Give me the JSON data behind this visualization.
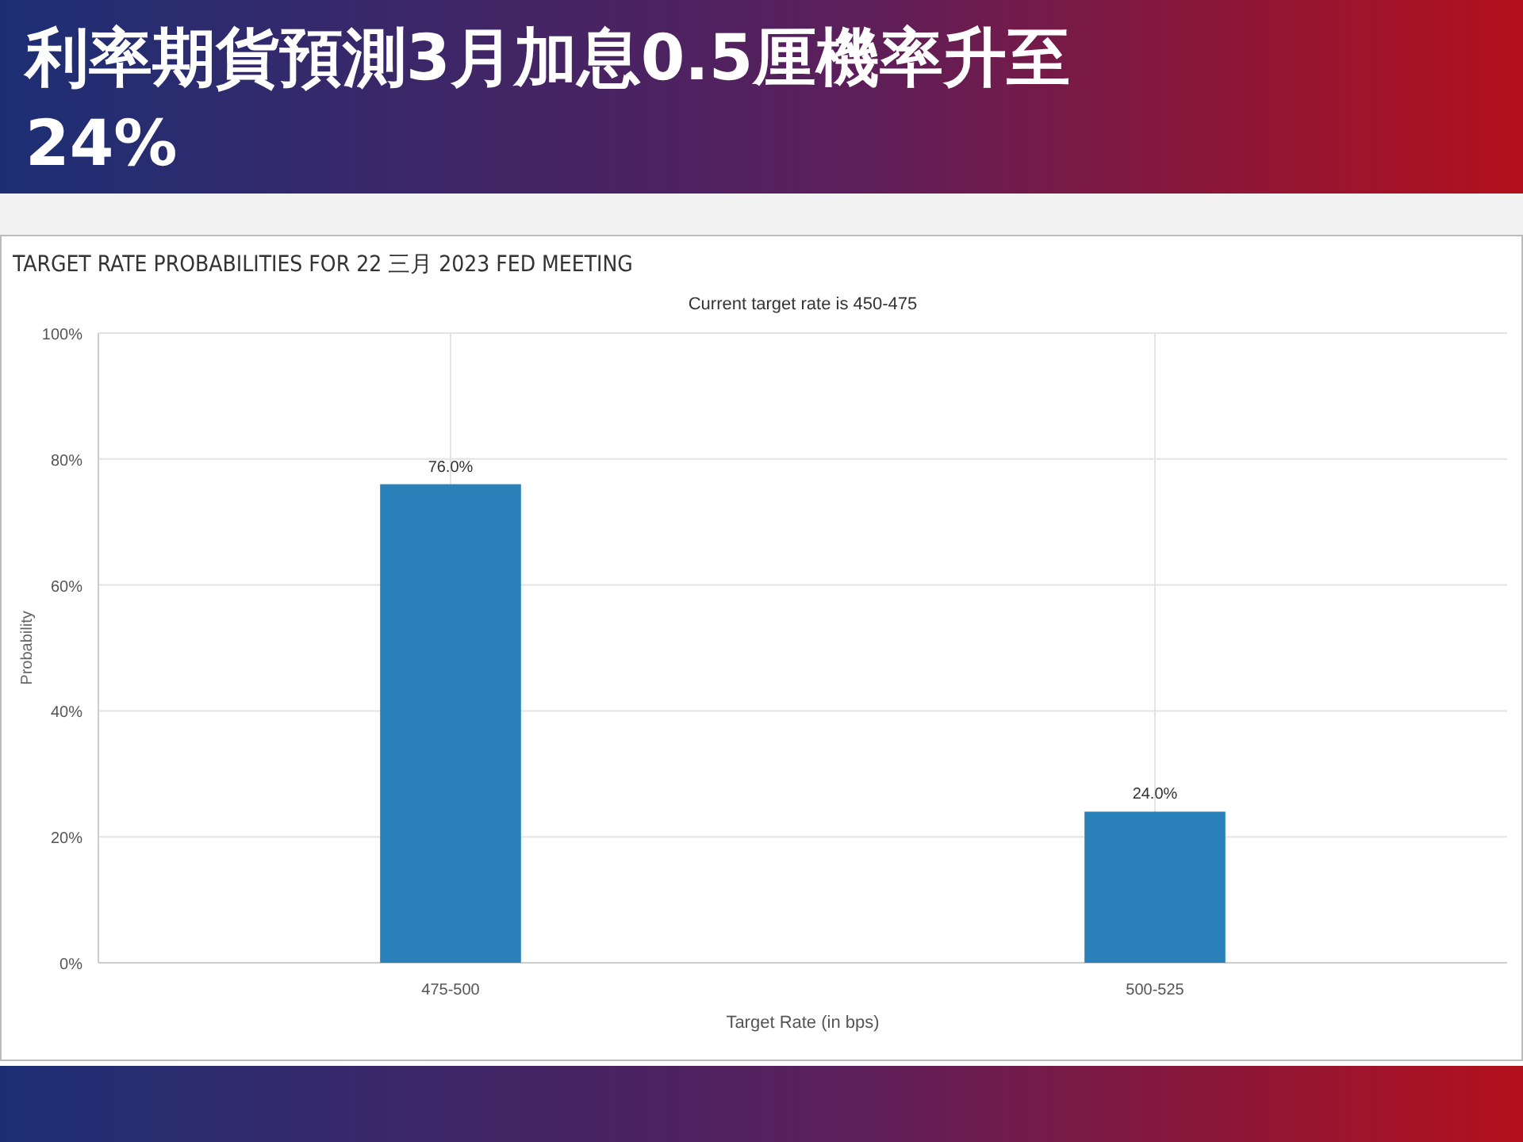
{
  "chart_data": {
    "type": "bar",
    "title": "利率期貨預測3月加息0.5厘機率升至24%",
    "subtitle": "TARGET RATE PROBABILITIES FOR 22 三月 2023 FED MEETING",
    "annotations": [
      "Current target rate is 450-475"
    ],
    "xlabel": "Target Rate (in bps)",
    "ylabel": "Probability",
    "categories": [
      "475-500",
      "500-525"
    ],
    "values": [
      76.0,
      24.0
    ],
    "value_labels": [
      "76.0%",
      "24.0%"
    ],
    "color": "#2a80b9",
    "ylim": [
      0,
      100
    ],
    "yticks": [
      {
        "value": 0,
        "label": "0%"
      },
      {
        "value": 20,
        "label": "20%"
      },
      {
        "value": 40,
        "label": "40%"
      },
      {
        "value": 60,
        "label": "60%"
      },
      {
        "value": 80,
        "label": "80%"
      },
      {
        "value": 100,
        "label": "100%"
      }
    ],
    "grid": true
  }
}
